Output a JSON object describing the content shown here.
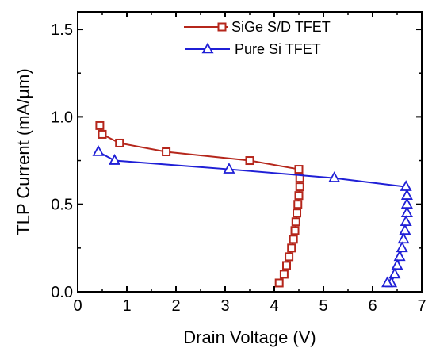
{
  "chart_data": {
    "type": "line",
    "title": "",
    "xlabel": "Drain Voltage (V)",
    "ylabel": "TLP Current (mA/µm)",
    "xlim": [
      0,
      7
    ],
    "ylim": [
      0,
      1.6
    ],
    "x_ticks": [
      "0",
      "1",
      "2",
      "3",
      "4",
      "5",
      "6",
      "7"
    ],
    "y_ticks": [
      "0.0",
      "0.5",
      "1.0",
      "1.5"
    ],
    "grid": false,
    "legend_position": "top-right",
    "series": [
      {
        "name": "SiGe S/D TFET",
        "color": "#b5261b",
        "marker": "square",
        "x": [
          0.45,
          0.5,
          0.85,
          1.8,
          3.5,
          4.5,
          4.52,
          4.52,
          4.5,
          4.48,
          4.46,
          4.44,
          4.42,
          4.39,
          4.35,
          4.3,
          4.25,
          4.2,
          4.1
        ],
        "y": [
          0.95,
          0.9,
          0.85,
          0.8,
          0.75,
          0.7,
          0.65,
          0.6,
          0.55,
          0.5,
          0.45,
          0.4,
          0.35,
          0.3,
          0.25,
          0.2,
          0.15,
          0.1,
          0.05
        ]
      },
      {
        "name": "Pure Si TFET",
        "color": "#1f1fd6",
        "marker": "triangle",
        "x": [
          0.42,
          0.75,
          3.08,
          5.22,
          6.68,
          6.7,
          6.7,
          6.7,
          6.68,
          6.66,
          6.63,
          6.6,
          6.55,
          6.5,
          6.45,
          6.38,
          6.3
        ],
        "y": [
          0.8,
          0.75,
          0.7,
          0.65,
          0.6,
          0.55,
          0.5,
          0.45,
          0.4,
          0.35,
          0.3,
          0.25,
          0.2,
          0.15,
          0.1,
          0.05,
          0.05
        ]
      }
    ]
  }
}
